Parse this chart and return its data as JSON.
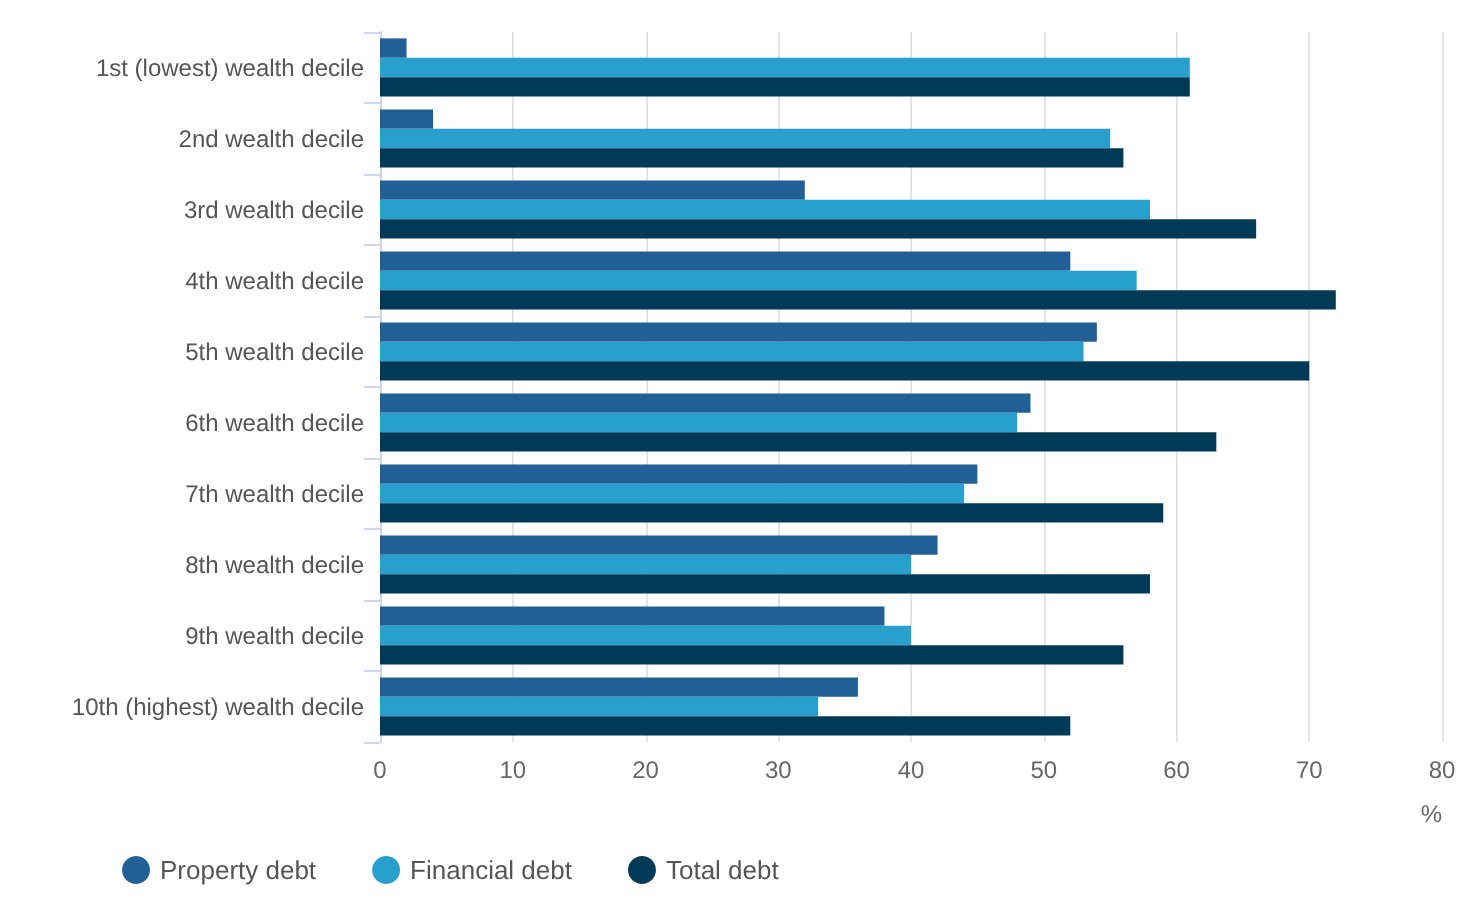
{
  "chart_data": {
    "type": "bar",
    "orientation": "horizontal",
    "xlabel": "%",
    "categories": [
      "1st (lowest) wealth decile",
      "2nd wealth decile",
      "3rd wealth decile",
      "4th wealth decile",
      "5th wealth decile",
      "6th wealth decile",
      "7th wealth decile",
      "8th wealth decile",
      "9th wealth decile",
      "10th (highest) wealth decile"
    ],
    "series": [
      {
        "name": "Property debt",
        "color": "#225f94",
        "values": [
          2,
          4,
          32,
          52,
          54,
          49,
          45,
          42,
          38,
          36
        ]
      },
      {
        "name": "Financial debt",
        "color": "#289fcd",
        "values": [
          61,
          55,
          58,
          57,
          53,
          48,
          44,
          40,
          40,
          33
        ]
      },
      {
        "name": "Total debt",
        "color": "#003a57",
        "values": [
          61,
          56,
          66,
          72,
          70,
          63,
          59,
          58,
          56,
          52
        ]
      }
    ],
    "xlim": [
      0,
      80
    ],
    "xticks": [
      0,
      10,
      20,
      30,
      40,
      50,
      60,
      70,
      80
    ],
    "grid": "x",
    "legend": "bottom left"
  }
}
